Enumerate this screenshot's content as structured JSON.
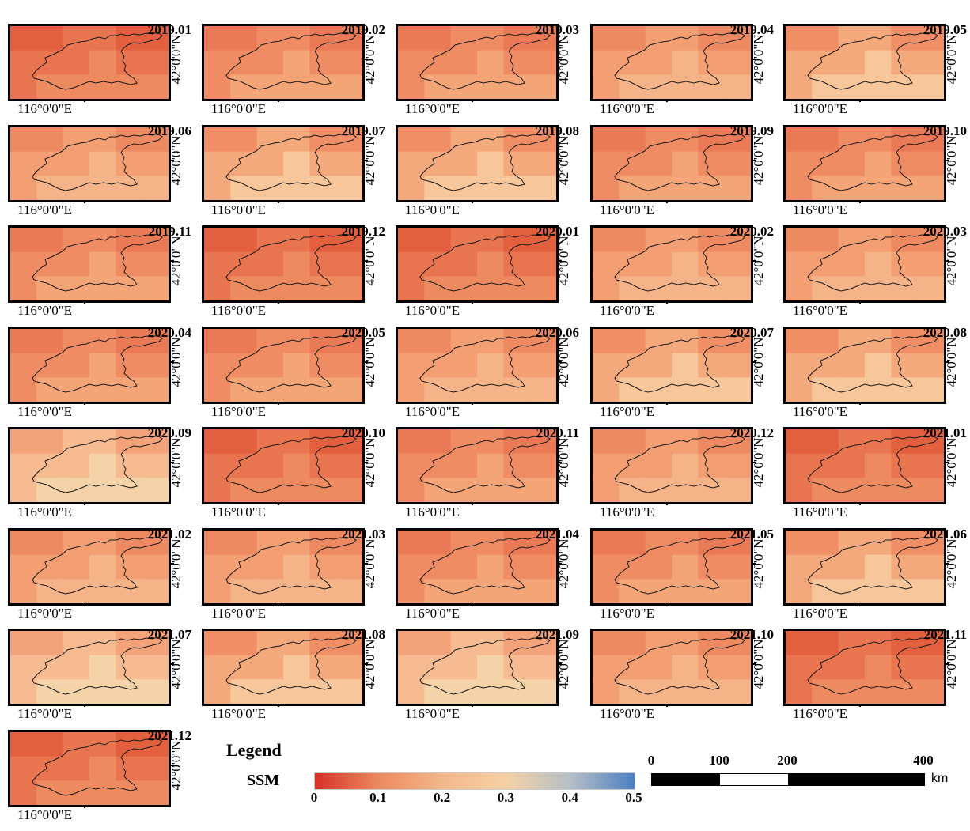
{
  "panels": [
    {
      "date": "2019.01",
      "scheme": 0
    },
    {
      "date": "2019.02",
      "scheme": 1
    },
    {
      "date": "2019.03",
      "scheme": 1
    },
    {
      "date": "2019.04",
      "scheme": 2
    },
    {
      "date": "2019.05",
      "scheme": 3
    },
    {
      "date": "2019.06",
      "scheme": 2
    },
    {
      "date": "2019.07",
      "scheme": 3
    },
    {
      "date": "2019.08",
      "scheme": 3
    },
    {
      "date": "2019.09",
      "scheme": 1
    },
    {
      "date": "2019.10",
      "scheme": 1
    },
    {
      "date": "2019.11",
      "scheme": 1
    },
    {
      "date": "2019.12",
      "scheme": 0
    },
    {
      "date": "2020.01",
      "scheme": 0
    },
    {
      "date": "2020.02",
      "scheme": 2
    },
    {
      "date": "2020.03",
      "scheme": 2
    },
    {
      "date": "2020.04",
      "scheme": 1
    },
    {
      "date": "2020.05",
      "scheme": 1
    },
    {
      "date": "2020.06",
      "scheme": 2
    },
    {
      "date": "2020.07",
      "scheme": 3
    },
    {
      "date": "2020.08",
      "scheme": 3
    },
    {
      "date": "2020.09",
      "scheme": 4
    },
    {
      "date": "2020.10",
      "scheme": 0
    },
    {
      "date": "2020.11",
      "scheme": 1
    },
    {
      "date": "2020.12",
      "scheme": 2
    },
    {
      "date": "2021.01",
      "scheme": 0
    },
    {
      "date": "2021.02",
      "scheme": 2
    },
    {
      "date": "2021.03",
      "scheme": 2
    },
    {
      "date": "2021.04",
      "scheme": 1
    },
    {
      "date": "2021.05",
      "scheme": 1
    },
    {
      "date": "2021.06",
      "scheme": 3
    },
    {
      "date": "2021.07",
      "scheme": 4
    },
    {
      "date": "2021.08",
      "scheme": 3
    },
    {
      "date": "2021.09",
      "scheme": 4
    },
    {
      "date": "2021.10",
      "scheme": 2
    },
    {
      "date": "2021.11",
      "scheme": 0
    },
    {
      "date": "2021.12",
      "scheme": 0
    }
  ],
  "lon_label": "116°0'0\"E",
  "lat_label": "42°0'0\"N",
  "legend": {
    "title": "Legend",
    "variable": "SSM",
    "ticks": [
      "0",
      "0.1",
      "0.2",
      "0.3",
      "0.4",
      "0.5"
    ],
    "range": [
      0,
      0.5
    ],
    "colors": [
      "#d73027",
      "#ec8a5f",
      "#f2b88a",
      "#f6d1a6",
      "#b5bfc7",
      "#4a7fc1"
    ]
  },
  "scale_bar": {
    "ticks": [
      "0",
      "100",
      "200",
      "400"
    ],
    "tick_values": [
      0,
      100,
      200,
      400
    ],
    "unit": "km"
  },
  "schemes": [
    [
      "#e2603e",
      "#e97550",
      "#ee8a60"
    ],
    [
      "#ea7a55",
      "#f08c63",
      "#f4a578"
    ],
    [
      "#ee8a62",
      "#f39e73",
      "#f5b388"
    ],
    [
      "#f08e66",
      "#f4a97d",
      "#f7c79b"
    ],
    [
      "#f3a27a",
      "#f6bb90",
      "#f5d3a8"
    ]
  ]
}
